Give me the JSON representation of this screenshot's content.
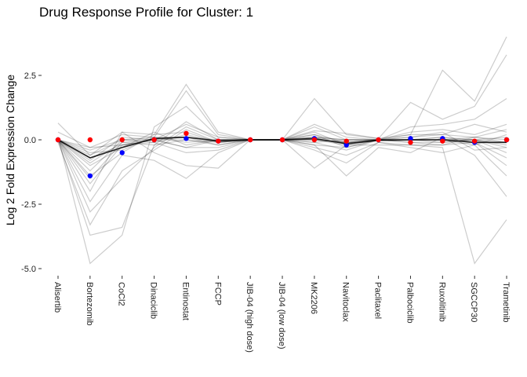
{
  "chart_data": {
    "type": "line",
    "title": "Drug Response Profile for Cluster:  1",
    "xlabel": "",
    "ylabel": "Log 2 Fold Expression Change",
    "categories": [
      "Alisertib",
      "Bortezomib",
      "CoCl2",
      "Dinaciclib",
      "Entinostat",
      "FCCP",
      "JIB-04 (high dose)",
      "JIB-04 (low dose)",
      "MK2206",
      "Navitoclax",
      "Paclitaxel",
      "Palbociclib",
      "Ruxolitinib",
      "SGCCP30",
      "Trametinib"
    ],
    "yticks": [
      -5.0,
      -2.5,
      0.0,
      2.5
    ],
    "ytick_labels": [
      "-5.0",
      "-2.5",
      "0.0",
      "2.5"
    ],
    "ylim": [
      -5.1,
      4.1
    ],
    "grid": false,
    "colors": {
      "background_lines": "#000000",
      "summary_line": "#000000",
      "blue_points": "#0000ff",
      "red_points": "#ff0000"
    },
    "series": [
      {
        "values": [
          0.65,
          -0.6,
          0.3,
          0.2,
          2.15,
          0.3,
          0,
          0,
          0.35,
          0.25,
          0.05,
          0.2,
          2.7,
          1.5,
          4.0
        ]
      },
      {
        "values": [
          0.3,
          -0.3,
          0.2,
          0.1,
          1.9,
          0.2,
          0,
          0,
          1.6,
          0.2,
          0.05,
          1.45,
          0.8,
          1.3,
          3.3
        ]
      },
      {
        "values": [
          0.1,
          -4.8,
          -3.7,
          0.5,
          1.3,
          0.1,
          0,
          0,
          0.6,
          0.1,
          0.0,
          0.5,
          0.6,
          0.8,
          1.6
        ]
      },
      {
        "values": [
          0.0,
          -3.7,
          -3.4,
          -0.2,
          0.7,
          0.0,
          0,
          0,
          0.5,
          0.0,
          0.0,
          0.3,
          0.4,
          0.2,
          0.6
        ]
      },
      {
        "values": [
          -0.1,
          -3.3,
          -1.2,
          -0.4,
          0.4,
          -0.1,
          0,
          0,
          0.3,
          -0.2,
          0.0,
          0.2,
          0.2,
          0.1,
          0.4
        ]
      },
      {
        "values": [
          0.0,
          -2.8,
          -1.5,
          -0.3,
          0.5,
          0.0,
          0,
          0,
          0.2,
          -0.1,
          0.0,
          0.1,
          0.2,
          0.6,
          0.3
        ]
      },
      {
        "values": [
          0.0,
          -2.4,
          -0.6,
          -0.8,
          -1.5,
          -0.5,
          0,
          0,
          -1.1,
          -0.2,
          -0.2,
          -0.2,
          -0.3,
          -4.8,
          -3.1
        ]
      },
      {
        "values": [
          0.0,
          -2.0,
          0.3,
          -0.5,
          -1.0,
          -1.1,
          0,
          0,
          -0.2,
          -1.4,
          -0.3,
          -0.5,
          0.1,
          -0.6,
          -2.2
        ]
      },
      {
        "values": [
          0.0,
          -1.7,
          -0.2,
          -0.1,
          -0.5,
          -0.4,
          0,
          0,
          -0.4,
          -0.9,
          -0.1,
          -0.3,
          -0.5,
          -0.2,
          -1.4
        ]
      },
      {
        "values": [
          0.0,
          -1.5,
          -0.1,
          0.0,
          -0.3,
          -0.3,
          0,
          0,
          -0.3,
          -0.6,
          -0.1,
          -0.2,
          -0.2,
          -0.1,
          -1.0
        ]
      },
      {
        "values": [
          0.0,
          -1.4,
          -0.5,
          0.2,
          0.3,
          -0.1,
          0,
          0,
          0.0,
          -0.2,
          0.0,
          0.0,
          0.1,
          -0.1,
          -0.7
        ]
      },
      {
        "values": [
          0.0,
          -1.2,
          0.0,
          0.1,
          0.1,
          -0.2,
          0,
          0,
          -0.1,
          -0.4,
          0.0,
          -0.1,
          -0.1,
          0.0,
          -0.5
        ]
      },
      {
        "values": [
          0.0,
          -1.0,
          -0.3,
          0.3,
          -0.2,
          0.0,
          0,
          0,
          0.2,
          -0.3,
          0.0,
          0.1,
          0.3,
          -0.4,
          -0.3
        ]
      },
      {
        "values": [
          0.0,
          -0.9,
          -0.1,
          -0.2,
          0.0,
          -0.2,
          0,
          0,
          0.1,
          -0.1,
          0.0,
          0.0,
          0.0,
          0.0,
          -0.2
        ]
      },
      {
        "values": [
          0.0,
          -0.8,
          0.1,
          0.0,
          0.6,
          0.1,
          0,
          0,
          -0.1,
          0.0,
          0.0,
          -0.1,
          -0.2,
          0.1,
          -0.1
        ]
      },
      {
        "values": [
          0.0,
          -0.7,
          -0.2,
          0.0,
          -0.3,
          0.0,
          0,
          0,
          0.0,
          -0.1,
          0.0,
          0.0,
          0.1,
          0.0,
          0.1
        ]
      },
      {
        "values": [
          0.0,
          -0.6,
          0.0,
          -0.1,
          0.2,
          -0.1,
          0,
          0,
          0.1,
          0.0,
          0.0,
          0.0,
          0.0,
          -0.2,
          0.2
        ]
      },
      {
        "values": [
          0.0,
          -0.5,
          -0.4,
          0.1,
          -0.1,
          0.0,
          0,
          0,
          -0.2,
          -0.3,
          0.0,
          0.0,
          -0.1,
          0.0,
          -0.1
        ]
      },
      {
        "values": [
          0.0,
          -0.4,
          0.0,
          0.0,
          0.1,
          0.0,
          0,
          0,
          0.1,
          0.0,
          0.0,
          0.0,
          0.0,
          0.1,
          0.0
        ]
      },
      {
        "values": [
          0.0,
          -0.3,
          -0.2,
          0.0,
          0.0,
          -0.1,
          0,
          0,
          0.0,
          -0.1,
          0.0,
          0.0,
          0.0,
          0.0,
          -0.3
        ]
      }
    ],
    "summary_line": {
      "values": [
        0.0,
        -0.7,
        -0.3,
        0.05,
        0.1,
        -0.05,
        0,
        0,
        0.05,
        -0.15,
        -0.02,
        0.0,
        0.0,
        -0.1,
        -0.1
      ]
    },
    "blue_points": {
      "values": [
        0.0,
        -1.4,
        -0.5,
        0.0,
        0.05,
        -0.05,
        0,
        0,
        0.05,
        -0.2,
        0.0,
        0.05,
        0.05,
        -0.1,
        0.0
      ]
    },
    "red_points": {
      "values": [
        0.0,
        0.0,
        0.0,
        0.0,
        0.25,
        -0.05,
        0,
        0,
        0.0,
        -0.05,
        0.0,
        -0.1,
        -0.05,
        -0.05,
        0.0
      ]
    }
  }
}
